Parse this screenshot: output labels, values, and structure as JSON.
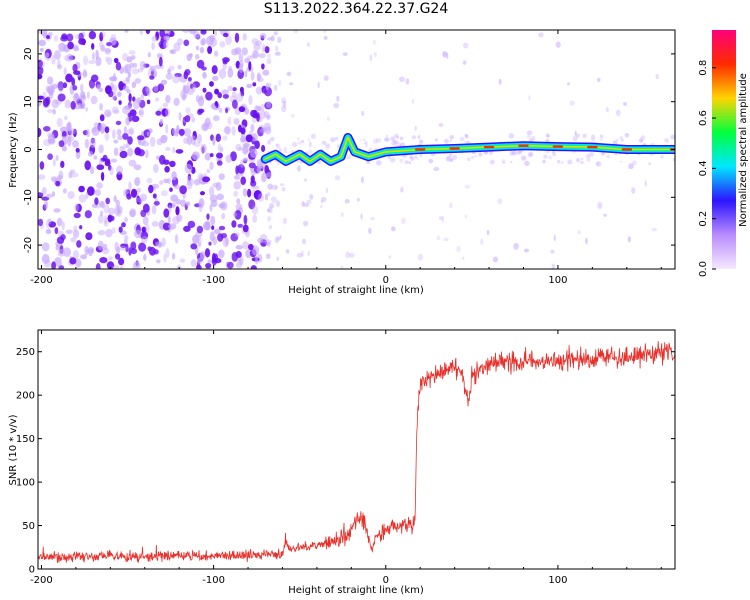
{
  "title": "S113.2022.364.22.37.G24",
  "colors": {
    "axis": "#000000",
    "snr_line": "#e8302a",
    "speckle": "#7a1cf0"
  },
  "chart_data": [
    {
      "type": "heatmap",
      "xlabel": "Height of straight line (km)",
      "ylabel": "Frequency (Hz)",
      "xlim": [
        -202,
        168
      ],
      "ylim": [
        -25,
        25
      ],
      "xticks": [
        -200,
        -100,
        0,
        100
      ],
      "yticks": [
        -20,
        -10,
        0,
        10,
        20
      ],
      "colorbar": {
        "label": "Normalized spectral amplitude",
        "ticks": [
          0.0,
          0.2,
          0.4,
          0.6,
          0.8
        ],
        "range": [
          0,
          0.95
        ],
        "colors": [
          "#f5e8ff",
          "#b98cff",
          "#2c14ff",
          "#00e8ff",
          "#00ff3c",
          "#ffd400",
          "#ff2a00",
          "#ff007a"
        ]
      },
      "noise_region_x": [
        -202,
        -68
      ],
      "signal_trace": [
        {
          "x": -70,
          "f": -2.0
        },
        {
          "x": -64,
          "f": -1.0
        },
        {
          "x": -58,
          "f": -2.5
        },
        {
          "x": -50,
          "f": -1.0
        },
        {
          "x": -44,
          "f": -2.5
        },
        {
          "x": -38,
          "f": -1.0
        },
        {
          "x": -32,
          "f": -2.5
        },
        {
          "x": -26,
          "f": -1.5
        },
        {
          "x": -22,
          "f": 2.5
        },
        {
          "x": -18,
          "f": -0.5
        },
        {
          "x": -10,
          "f": -1.5
        },
        {
          "x": 0,
          "f": -0.5
        },
        {
          "x": 20,
          "f": 0.0
        },
        {
          "x": 40,
          "f": 0.2
        },
        {
          "x": 60,
          "f": 0.5
        },
        {
          "x": 80,
          "f": 0.8
        },
        {
          "x": 100,
          "f": 0.6
        },
        {
          "x": 120,
          "f": 0.5
        },
        {
          "x": 140,
          "f": 0.0
        },
        {
          "x": 168,
          "f": 0.0
        }
      ]
    },
    {
      "type": "line",
      "xlabel": "Height of straight line (km)",
      "ylabel": "SNR (10 * v/v)",
      "xlim": [
        -202,
        168
      ],
      "ylim": [
        0,
        275
      ],
      "xticks": [
        -200,
        -100,
        0,
        100
      ],
      "yticks": [
        0,
        50,
        100,
        150,
        200,
        250
      ],
      "series": [
        {
          "x": [
            -202,
            -180,
            -160,
            -140,
            -120,
            -100,
            -80,
            -70,
            -60,
            -58,
            -55,
            -50,
            -40,
            -30,
            -20,
            -15,
            -12,
            -8,
            -5,
            0,
            5,
            10,
            15,
            17,
            18,
            20,
            25,
            30,
            35,
            40,
            45,
            48,
            50,
            55,
            60,
            80,
            100,
            120,
            140,
            160,
            168
          ],
          "values": [
            14,
            14,
            15,
            14,
            15,
            15,
            16,
            17,
            17,
            35,
            22,
            25,
            28,
            32,
            45,
            60,
            50,
            20,
            40,
            45,
            48,
            50,
            52,
            55,
            165,
            215,
            218,
            225,
            230,
            235,
            220,
            190,
            220,
            228,
            235,
            238,
            240,
            242,
            245,
            248,
            248
          ]
        }
      ]
    }
  ]
}
